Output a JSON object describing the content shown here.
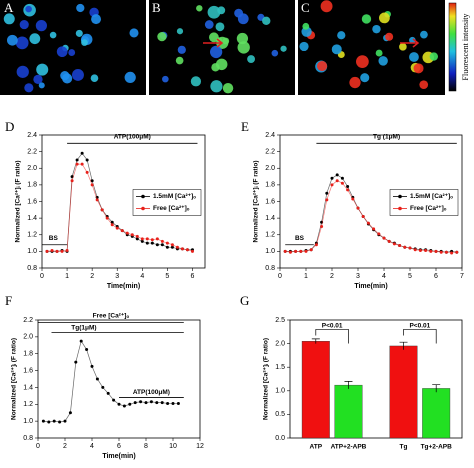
{
  "images": [
    {
      "label": "A"
    },
    {
      "label": "B"
    },
    {
      "label": "C"
    }
  ],
  "colorbar_label": "Fluorescent intensity",
  "chart_data": [
    {
      "type": "line",
      "panel": "D",
      "xlabel": "Time(min)",
      "ylabel": "Normalized [Ca²⁺]ᵢ (F ratio)",
      "annotations": [
        "ATP(100μM)",
        "BS"
      ],
      "x": [
        0.2,
        0.4,
        0.6,
        0.8,
        1.0,
        1.2,
        1.4,
        1.6,
        1.8,
        2.0,
        2.2,
        2.4,
        2.6,
        2.8,
        3.0,
        3.2,
        3.4,
        3.6,
        3.8,
        4.0,
        4.2,
        4.4,
        4.6,
        4.8,
        5.0,
        5.2,
        5.4,
        5.6,
        5.8,
        6.0
      ],
      "series": [
        {
          "name": "1.5mM [Ca²⁺]ₒ",
          "color": "#000000",
          "values": [
            1.0,
            1.0,
            1.0,
            1.01,
            1.0,
            1.9,
            2.1,
            2.18,
            2.1,
            1.85,
            1.65,
            1.5,
            1.42,
            1.35,
            1.3,
            1.25,
            1.2,
            1.18,
            1.15,
            1.12,
            1.1,
            1.1,
            1.08,
            1.08,
            1.05,
            1.05,
            1.03,
            1.03,
            1.02,
            1.02
          ]
        },
        {
          "name": "Free [Ca²⁺]ₒ",
          "color": "#e8201a",
          "values": [
            1.0,
            1.01,
            1.0,
            1.0,
            1.01,
            1.85,
            2.05,
            2.05,
            1.95,
            1.8,
            1.62,
            1.5,
            1.4,
            1.32,
            1.28,
            1.25,
            1.22,
            1.2,
            1.18,
            1.15,
            1.15,
            1.14,
            1.15,
            1.12,
            1.1,
            1.08,
            1.05,
            1.03,
            1.02,
            1.0
          ]
        }
      ],
      "xlim": [
        0,
        6.5
      ],
      "xticks": [
        0,
        1,
        2,
        3,
        4,
        5,
        6
      ],
      "ylim": [
        0.8,
        2.4
      ],
      "yticks": [
        0.8,
        {
          "value": 1,
          "label": "1.0"
        },
        1.2,
        1.4,
        1.6,
        1.8,
        {
          "value": 2,
          "label": "2.0"
        },
        2.2,
        2.4
      ],
      "legend": "right"
    },
    {
      "type": "line",
      "panel": "E",
      "xlabel": "Time(min)",
      "ylabel": "Normalized [Ca²⁺]ᵢ (F ratio)",
      "annotations": [
        "Tg (1μM)",
        "BS"
      ],
      "x": [
        0.2,
        0.4,
        0.6,
        0.8,
        1.0,
        1.2,
        1.4,
        1.6,
        1.8,
        2.0,
        2.2,
        2.4,
        2.6,
        2.8,
        3.0,
        3.2,
        3.4,
        3.6,
        3.8,
        4.0,
        4.2,
        4.4,
        4.6,
        4.8,
        5.0,
        5.2,
        5.4,
        5.6,
        5.8,
        6.0,
        6.2,
        6.4,
        6.6,
        6.8
      ],
      "series": [
        {
          "name": "1.5mM [Ca²⁺]ₒ",
          "color": "#000000",
          "values": [
            1.0,
            1.0,
            1.0,
            1.0,
            1.01,
            1.02,
            1.1,
            1.35,
            1.7,
            1.88,
            1.92,
            1.88,
            1.78,
            1.65,
            1.52,
            1.42,
            1.33,
            1.26,
            1.2,
            1.16,
            1.12,
            1.1,
            1.07,
            1.05,
            1.04,
            1.03,
            1.02,
            1.02,
            1.01,
            1.0,
            1.0,
            0.99,
            1.0,
            0.99
          ]
        },
        {
          "name": "Free [Ca²⁺]ₒ",
          "color": "#e8201a",
          "values": [
            1.0,
            0.99,
            1.0,
            1.0,
            1.0,
            1.02,
            1.08,
            1.3,
            1.62,
            1.8,
            1.85,
            1.82,
            1.74,
            1.63,
            1.52,
            1.42,
            1.34,
            1.27,
            1.21,
            1.16,
            1.12,
            1.09,
            1.07,
            1.05,
            1.04,
            1.02,
            1.01,
            1.01,
            1.0,
            1.0,
            0.99,
            0.99,
            0.98,
            0.99
          ]
        }
      ],
      "xlim": [
        0,
        7
      ],
      "xticks": [
        0,
        1,
        2,
        3,
        4,
        5,
        6,
        7
      ],
      "ylim": [
        0.8,
        2.4
      ],
      "yticks": [
        0.8,
        {
          "value": 1,
          "label": "1.0"
        },
        1.2,
        1.4,
        1.6,
        1.8,
        {
          "value": 2,
          "label": "2.0"
        },
        2.2,
        2.4
      ],
      "legend": "right"
    },
    {
      "type": "line",
      "panel": "F",
      "xlabel": "Time(min)",
      "ylabel": "Normalized [Ca²⁺]ᵢ (F ratio)",
      "annotations": [
        "Free [Ca²⁺]ₒ",
        "Tg(1μM)",
        "ATP(100μM)"
      ],
      "x": [
        0.4,
        0.8,
        1.2,
        1.6,
        2.0,
        2.4,
        2.8,
        3.2,
        3.6,
        4.0,
        4.4,
        4.8,
        5.2,
        5.6,
        6.0,
        6.4,
        6.8,
        7.2,
        7.6,
        8.0,
        8.4,
        8.8,
        9.2,
        9.6,
        10.0,
        10.4
      ],
      "series": [
        {
          "color": "#000000",
          "values": [
            1.0,
            0.99,
            1.0,
            0.99,
            1.0,
            1.1,
            1.7,
            1.95,
            1.85,
            1.65,
            1.5,
            1.4,
            1.33,
            1.25,
            1.2,
            1.18,
            1.2,
            1.22,
            1.23,
            1.22,
            1.23,
            1.22,
            1.22,
            1.21,
            1.21,
            1.21
          ]
        }
      ],
      "xlim": [
        0,
        12
      ],
      "xticks": [
        0,
        2,
        4,
        6,
        8,
        10,
        12
      ],
      "ylim": [
        0.8,
        2.2
      ],
      "yticks": [
        0.8,
        {
          "value": 1,
          "label": "1.0"
        },
        1.2,
        1.4,
        1.6,
        1.8,
        {
          "value": 2,
          "label": "2.0"
        },
        2.2
      ]
    },
    {
      "type": "bar",
      "panel": "G",
      "ylabel": "Normalized [Ca²⁺]ᵢ (F ratio)",
      "annotations": [
        "P<0.01",
        "P<0.01"
      ],
      "categories": [
        "ATP",
        "ATP+2-APB",
        "Tg",
        "Tg+2-APB"
      ],
      "values": [
        2.05,
        1.12,
        1.95,
        1.05
      ],
      "errors": [
        0.05,
        0.08,
        0.08,
        0.08
      ],
      "colors": [
        "#f01010",
        "#22e022",
        "#f01010",
        "#22e022"
      ],
      "ylim": [
        0,
        2.5
      ],
      "yticks": [
        {
          "value": 0,
          "label": "0.0"
        },
        0.5,
        {
          "value": 1,
          "label": "1.0"
        },
        1.5,
        {
          "value": 2,
          "label": "2.0"
        },
        2.5
      ]
    }
  ]
}
